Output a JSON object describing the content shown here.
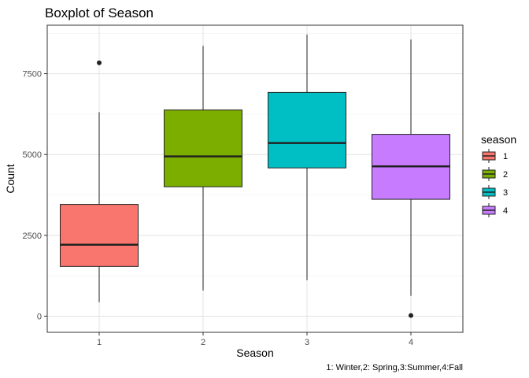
{
  "chart_data": {
    "type": "boxplot",
    "title": "Boxplot of Season",
    "xlabel": "Season",
    "ylabel": "Count",
    "caption": "1: Winter,2: Spring,3:Summer,4:Fall",
    "ylim": [
      -500,
      9000
    ],
    "yticks": [
      0,
      2500,
      5000,
      7500
    ],
    "ytick_labels": [
      "0",
      "2500",
      "5000",
      "7500"
    ],
    "categories": [
      "1",
      "2",
      "3",
      "4"
    ],
    "boxes": [
      {
        "category": "1",
        "min": 431,
        "q1": 1538,
        "median": 2209,
        "q3": 3456,
        "max": 6312,
        "outliers": [
          7836
        ],
        "color": "#F8766D"
      },
      {
        "category": "2",
        "min": 795,
        "q1": 4003,
        "median": 4942,
        "q3": 6377,
        "max": 8362,
        "outliers": [],
        "color": "#7CAE00"
      },
      {
        "category": "3",
        "min": 1115,
        "q1": 4586,
        "median": 5354,
        "q3": 6920,
        "max": 8714,
        "outliers": [],
        "color": "#00BFC4"
      },
      {
        "category": "4",
        "min": 627,
        "q1": 3615,
        "median": 4634,
        "q3": 5624,
        "max": 8555,
        "outliers": [
          22
        ],
        "color": "#C77CFF"
      }
    ],
    "legend": {
      "title": "season",
      "position": "right",
      "entries": [
        {
          "label": "1",
          "color": "#F8766D"
        },
        {
          "label": "2",
          "color": "#7CAE00"
        },
        {
          "label": "3",
          "color": "#00BFC4"
        },
        {
          "label": "4",
          "color": "#C77CFF"
        }
      ]
    },
    "grid": true
  }
}
